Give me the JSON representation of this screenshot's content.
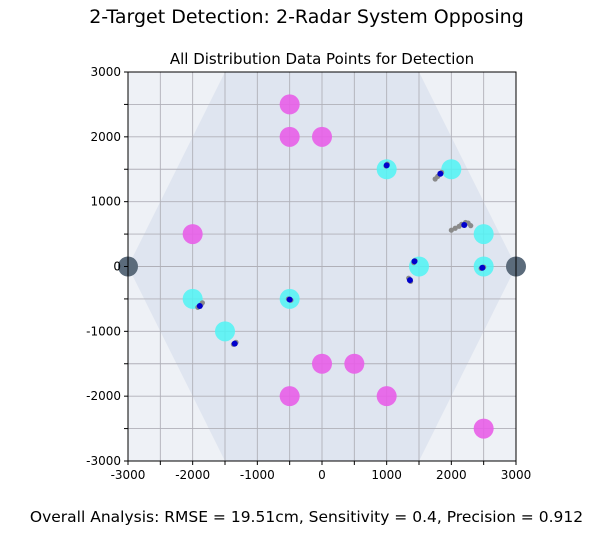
{
  "figure": {
    "suptitle": "2-Target Detection: 2-Radar System Opposing",
    "footer": "Overall Analysis: RMSE = 19.51cm, Sensitivity = 0.4, Precision = 0.912"
  },
  "chart_data": {
    "type": "scatter",
    "title": "All Distribution Data Points for Detection",
    "xlabel": "",
    "ylabel": "",
    "xlim": [
      -3000,
      3000
    ],
    "ylim": [
      -3000,
      3000
    ],
    "xticks": [
      "-3000",
      "-2000",
      "-1000",
      "0",
      "1000",
      "2000",
      "3000"
    ],
    "yticks": [
      "3000",
      "2000",
      "1000",
      "0",
      "-1000",
      "-2000",
      "-3000"
    ],
    "grid": true,
    "coverage_region": [
      [
        -3000,
        0
      ],
      [
        -1500,
        3000
      ],
      [
        1500,
        3000
      ],
      [
        3000,
        0
      ],
      [
        1500,
        -3000
      ],
      [
        -1500,
        -3000
      ]
    ],
    "colors": {
      "background": "#eef1f6",
      "coverage": "#dfe5f0",
      "grid": "#b0b0b8",
      "radar": "#5b6b7b",
      "detected_target": "#50f5f5",
      "missed_target": "#e85ee8",
      "detection": "#0000cc",
      "candidate": "#8a8a8a"
    },
    "series": [
      {
        "key": "radars",
        "points": [
          [
            -3000,
            0
          ],
          [
            3000,
            0
          ]
        ]
      },
      {
        "key": "detected_targets",
        "points": [
          [
            1000,
            1500
          ],
          [
            2000,
            1500
          ],
          [
            2500,
            500
          ],
          [
            1500,
            0
          ],
          [
            2500,
            0
          ],
          [
            -2000,
            -500
          ],
          [
            -500,
            -500
          ],
          [
            -1500,
            -1000
          ]
        ]
      },
      {
        "key": "missed_targets",
        "points": [
          [
            -500,
            2500
          ],
          [
            -500,
            2000
          ],
          [
            0,
            2000
          ],
          [
            -2000,
            500
          ],
          [
            0,
            -1500
          ],
          [
            500,
            -1500
          ],
          [
            -500,
            -2000
          ],
          [
            1000,
            -2000
          ],
          [
            2500,
            -2500
          ]
        ]
      },
      {
        "key": "detections",
        "points": [
          [
            1000,
            1560
          ],
          [
            1830,
            1430
          ],
          [
            2200,
            640
          ],
          [
            1430,
            80
          ],
          [
            1360,
            -210
          ],
          [
            2480,
            -20
          ],
          [
            -1890,
            -610
          ],
          [
            -500,
            -510
          ],
          [
            -1350,
            -1190
          ]
        ]
      },
      {
        "key": "candidates",
        "points": [
          [
            1010,
            1580
          ],
          [
            990,
            1550
          ],
          [
            1750,
            1350
          ],
          [
            1790,
            1390
          ],
          [
            1850,
            1450
          ],
          [
            2000,
            560
          ],
          [
            2060,
            590
          ],
          [
            2120,
            620
          ],
          [
            2160,
            650
          ],
          [
            2220,
            680
          ],
          [
            2260,
            670
          ],
          [
            2300,
            630
          ],
          [
            1440,
            90
          ],
          [
            1420,
            60
          ],
          [
            1340,
            -180
          ],
          [
            1370,
            -230
          ],
          [
            2460,
            -30
          ],
          [
            2500,
            -10
          ],
          [
            -1920,
            -630
          ],
          [
            -1870,
            -590
          ],
          [
            -1850,
            -560
          ],
          [
            -520,
            -500
          ],
          [
            -480,
            -520
          ],
          [
            -1330,
            -1170
          ],
          [
            -1370,
            -1200
          ]
        ]
      }
    ]
  }
}
